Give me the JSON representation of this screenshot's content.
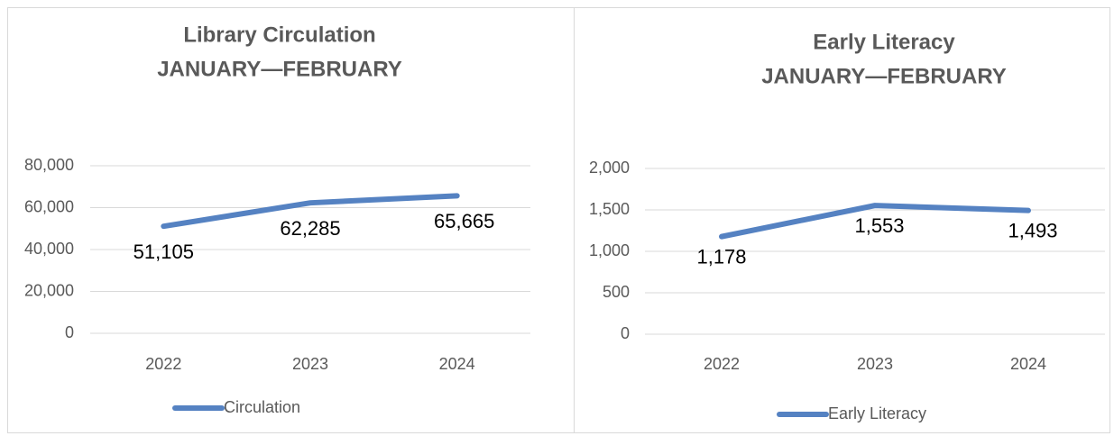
{
  "chart_data": [
    {
      "type": "line",
      "title": "Library Circulation",
      "subtitle": "JANUARY—FEBRUARY",
      "categories": [
        "2022",
        "2023",
        "2024"
      ],
      "series": [
        {
          "name": "Circulation",
          "color": "#5582c2",
          "values": [
            51105,
            62285,
            65665
          ],
          "value_labels": [
            "51,105",
            "62,285",
            "65,665"
          ]
        }
      ],
      "ylim": [
        0,
        80000
      ],
      "yticks": [
        0,
        {
          "value": 20000,
          "label": "20,000"
        },
        {
          "value": 40000,
          "label": "40,000"
        },
        {
          "value": 60000,
          "label": "60,000"
        },
        {
          "value": 80000,
          "label": "80,000"
        }
      ],
      "grid": true,
      "legend": "bottom"
    },
    {
      "type": "line",
      "title": "Early Literacy",
      "subtitle": "JANUARY—FEBRUARY",
      "categories": [
        "2022",
        "2023",
        "2024"
      ],
      "series": [
        {
          "name": "Early Literacy",
          "color": "#5582c2",
          "values": [
            1178,
            1553,
            1493
          ],
          "value_labels": [
            "1,178",
            "1,553",
            "1,493"
          ]
        }
      ],
      "ylim": [
        0,
        2000
      ],
      "yticks": [
        0,
        500,
        {
          "value": 1000,
          "label": "1,000"
        },
        {
          "value": 1500,
          "label": "1,500"
        },
        {
          "value": 2000,
          "label": "2,000"
        }
      ],
      "grid": true,
      "legend": "bottom"
    }
  ]
}
